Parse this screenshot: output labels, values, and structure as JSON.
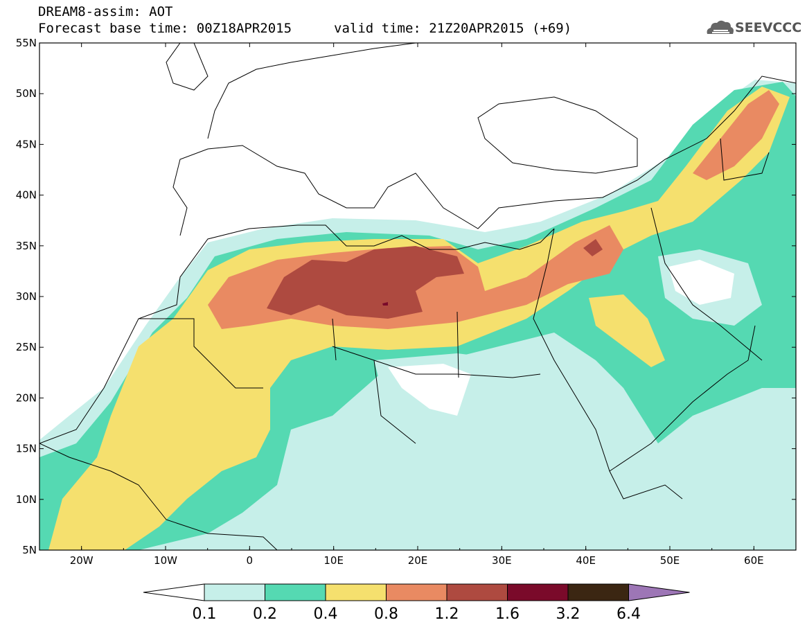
{
  "header": {
    "title": "DREAM8-assim: AOT",
    "base_time": "Forecast base time: 00Z18APR2015",
    "valid_time": "valid time: 21Z20APR2015 (+69)"
  },
  "logo": {
    "text": "SEEVCCC",
    "icon": "cloud-icon"
  },
  "map": {
    "lon_range": [
      -25,
      65
    ],
    "lat_range": [
      5,
      55
    ],
    "x_ticks": [
      "20W",
      "10W",
      "0",
      "10E",
      "20E",
      "30E",
      "40E",
      "50E",
      "60E"
    ],
    "y_ticks": [
      "5N",
      "10N",
      "15N",
      "20N",
      "25N",
      "30N",
      "35N",
      "40N",
      "45N",
      "50N",
      "55N"
    ]
  },
  "colorbar": {
    "labels": [
      "0.1",
      "0.2",
      "0.4",
      "0.8",
      "1.2",
      "1.6",
      "3.2",
      "6.4"
    ],
    "colors": [
      "#ffffff",
      "#c6efe9",
      "#55d9b2",
      "#f5e06e",
      "#e98a62",
      "#ae4a40",
      "#7a0a2a",
      "#3b2612",
      "#9d76b6"
    ]
  }
}
